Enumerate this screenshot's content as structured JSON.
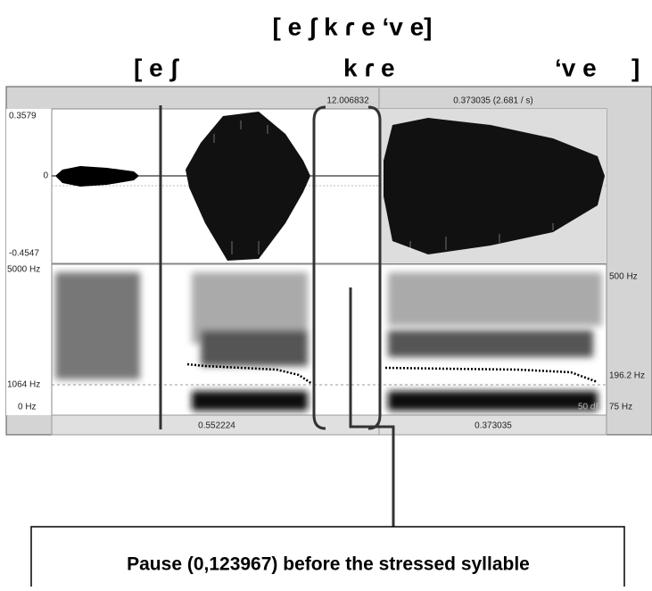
{
  "title": "[ e ʃ k ɾ e ‘v e]",
  "segments": [
    "[ e ʃ",
    "k ɾ e",
    "‘v e",
    "]"
  ],
  "praat": {
    "top_time": "12.006832",
    "top_selection": "0.373035 (2.681 / s)",
    "amp_max": "0.3579",
    "amp_zero": "0",
    "amp_min": "-0.4547",
    "freq_max": "5000 Hz",
    "freq_cursor": "1064 Hz",
    "freq_min": "0 Hz",
    "pitch_max": "500 Hz",
    "pitch_value": "196.2 Hz",
    "pitch_min": "75 Hz",
    "intensity": "50 dB",
    "bottom_left": "0.552224",
    "bottom_right": "0.373035"
  },
  "callout": "Pause (0,123967) before the stressed syllable"
}
